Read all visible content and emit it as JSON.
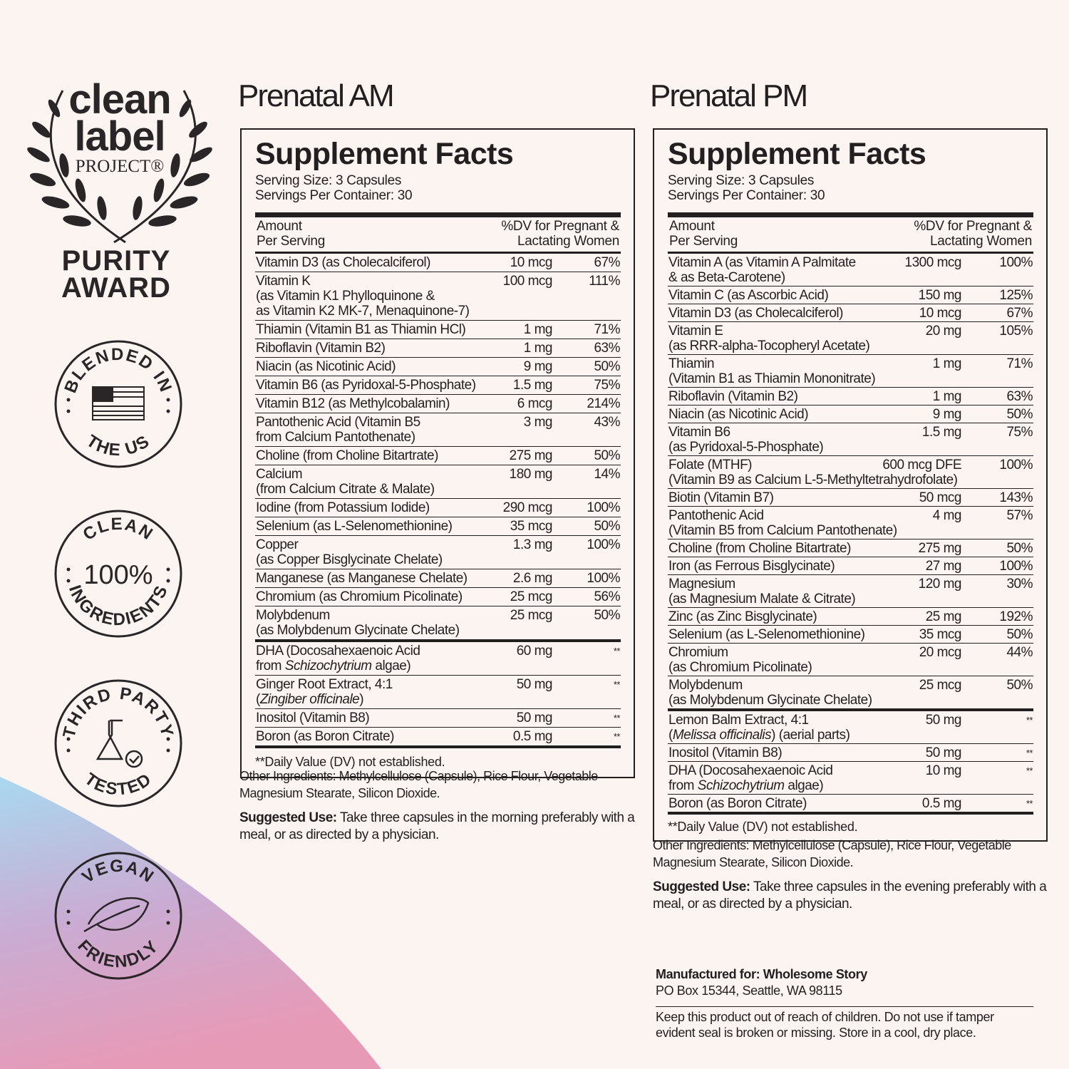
{
  "colors": {
    "text": "#231f20",
    "background": "#fbf4f1",
    "gradient_top": "#a9d8ef",
    "gradient_bottom": "#e69ab6"
  },
  "logo": {
    "line1": "clean",
    "line2": "label",
    "line3": "PROJECT®",
    "award1": "PURITY",
    "award2": "AWARD"
  },
  "badges": [
    {
      "top": "BLENDED IN",
      "bottom": "THE US",
      "icon": "us-flag-icon"
    },
    {
      "top": "CLEAN",
      "center": "100%",
      "bottom": "INGREDIENTS",
      "icon": ""
    },
    {
      "top": "THIRD PARTY",
      "bottom": "TESTED",
      "icon": "flask-check-icon"
    },
    {
      "top": "VEGAN",
      "bottom": "FRIENDLY",
      "icon": "leaf-icon"
    }
  ],
  "am": {
    "title": "Prenatal AM",
    "facts_title": "Supplement Facts",
    "serving_size": "Serving Size: 3 Capsules",
    "servings_per": "Servings Per Container: 30",
    "hdr_l1": "Amount",
    "hdr_l2": "Per Serving",
    "hdr_r1": "%DV for Pregnant &",
    "hdr_r2": "Lactating Women",
    "rows": [
      {
        "lines": [
          "Vitamin D3 (as Cholecalciferol)"
        ],
        "amount": "10 mcg",
        "dv": "67%"
      },
      {
        "lines": [
          "Vitamin K",
          "(as Vitamin K1 Phylloquinone &",
          "as Vitamin K2 MK-7, Menaquinone-7)"
        ],
        "amount": "100 mcg",
        "dv": "111%"
      },
      {
        "lines": [
          "Thiamin (Vitamin B1 as Thiamin HCl)"
        ],
        "amount": "1 mg",
        "dv": "71%"
      },
      {
        "lines": [
          "Riboflavin (Vitamin B2)"
        ],
        "amount": "1 mg",
        "dv": "63%"
      },
      {
        "lines": [
          "Niacin (as Nicotinic Acid)"
        ],
        "amount": "9 mg",
        "dv": "50%"
      },
      {
        "lines": [
          "Vitamin B6 (as Pyridoxal-5-Phosphate)"
        ],
        "amount": "1.5 mg",
        "dv": "75%"
      },
      {
        "lines": [
          "Vitamin B12 (as Methylcobalamin)"
        ],
        "amount": "6 mcg",
        "dv": "214%"
      },
      {
        "lines": [
          "Pantothenic Acid (Vitamin B5",
          "from Calcium Pantothenate)"
        ],
        "amount": "3 mg",
        "dv": "43%"
      },
      {
        "lines": [
          "Choline (from Choline Bitartrate)"
        ],
        "amount": "275 mg",
        "dv": "50%"
      },
      {
        "lines": [
          "Calcium",
          "(from Calcium Citrate & Malate)"
        ],
        "amount": "180 mg",
        "dv": "14%"
      },
      {
        "lines": [
          "Iodine (from Potassium Iodide)"
        ],
        "amount": "290 mcg",
        "dv": "100%"
      },
      {
        "lines": [
          "Selenium (as L-Selenomethionine)"
        ],
        "amount": "35 mcg",
        "dv": "50%"
      },
      {
        "lines": [
          "Copper",
          "(as Copper Bisglycinate Chelate)"
        ],
        "amount": "1.3 mg",
        "dv": "100%"
      },
      {
        "lines": [
          "Manganese (as Manganese Chelate)"
        ],
        "amount": "2.6 mg",
        "dv": "100%"
      },
      {
        "lines": [
          "Chromium (as Chromium Picolinate)"
        ],
        "amount": "25 mcg",
        "dv": "56%"
      },
      {
        "lines": [
          "Molybdenum",
          "(as Molybdenum Glycinate Chelate)"
        ],
        "amount": "25 mcg",
        "dv": "50%",
        "thick": true
      },
      {
        "lines": [
          "DHA (Docosahexaenoic Acid",
          "from Schizochytrium algae)"
        ],
        "italic": "Schizochytrium",
        "amount": "60 mg",
        "dv": "**"
      },
      {
        "lines": [
          "Ginger Root Extract, 4:1",
          "(Zingiber officinale)"
        ],
        "italic": "Zingiber officinale",
        "amount": "50 mg",
        "dv": "**"
      },
      {
        "lines": [
          "Inositol (Vitamin B8)"
        ],
        "amount": "50 mg",
        "dv": "**"
      },
      {
        "lines": [
          "Boron (as Boron Citrate)"
        ],
        "amount": "0.5 mg",
        "dv": "**",
        "thick": true
      }
    ],
    "footnote": "**Daily Value (DV) not established.",
    "other_ingredients": "Other Ingredients: Methylcellulose (Capsule), Rice Flour, Vegetable Magnesium Stearate, Silicon Dioxide.",
    "suggested_label": "Suggested Use:",
    "suggested_text": " Take three capsules in the morning preferably with a meal, or as directed by a physician."
  },
  "pm": {
    "title": "Prenatal PM",
    "facts_title": "Supplement Facts",
    "serving_size": "Serving Size: 3 Capsules",
    "servings_per": "Servings Per Container: 30",
    "hdr_l1": "Amount",
    "hdr_l2": "Per Serving",
    "hdr_r1": "%DV for Pregnant &",
    "hdr_r2": "Lactating Women",
    "rows": [
      {
        "lines": [
          "Vitamin A (as Vitamin A Palmitate",
          "& as Beta-Carotene)"
        ],
        "amount": "1300 mcg",
        "dv": "100%"
      },
      {
        "lines": [
          "Vitamin C (as Ascorbic Acid)"
        ],
        "amount": "150 mg",
        "dv": "125%"
      },
      {
        "lines": [
          "Vitamin D3 (as Cholecalciferol)"
        ],
        "amount": "10 mcg",
        "dv": "67%"
      },
      {
        "lines": [
          "Vitamin E",
          "(as RRR-alpha-Tocopheryl Acetate)"
        ],
        "amount": "20 mg",
        "dv": "105%"
      },
      {
        "lines": [
          "Thiamin",
          "(Vitamin B1 as Thiamin Mononitrate)"
        ],
        "amount": "1 mg",
        "dv": "71%"
      },
      {
        "lines": [
          "Riboflavin (Vitamin B2)"
        ],
        "amount": "1 mg",
        "dv": "63%"
      },
      {
        "lines": [
          "Niacin (as Nicotinic Acid)"
        ],
        "amount": "9 mg",
        "dv": "50%"
      },
      {
        "lines": [
          "Vitamin B6",
          "(as Pyridoxal-5-Phosphate)"
        ],
        "amount": "1.5 mg",
        "dv": "75%"
      },
      {
        "lines": [
          "Folate (MTHF)",
          "(Vitamin B9 as Calcium L-5-Methyltetrahydrofolate)"
        ],
        "amount": "600 mcg DFE",
        "dv": "100%"
      },
      {
        "lines": [
          "Biotin (Vitamin B7)"
        ],
        "amount": "50 mcg",
        "dv": "143%"
      },
      {
        "lines": [
          "Pantothenic Acid",
          "(Vitamin B5 from Calcium Pantothenate)"
        ],
        "amount": "4 mg",
        "dv": "57%"
      },
      {
        "lines": [
          "Choline (from Choline Bitartrate)"
        ],
        "amount": "275 mg",
        "dv": "50%"
      },
      {
        "lines": [
          "Iron (as Ferrous Bisglycinate)"
        ],
        "amount": "27 mg",
        "dv": "100%"
      },
      {
        "lines": [
          "Magnesium",
          "(as Magnesium Malate & Citrate)"
        ],
        "amount": "120 mg",
        "dv": "30%"
      },
      {
        "lines": [
          "Zinc (as Zinc Bisglycinate)"
        ],
        "amount": "25 mg",
        "dv": "192%"
      },
      {
        "lines": [
          "Selenium (as L-Selenomethionine)"
        ],
        "amount": "35 mcg",
        "dv": "50%"
      },
      {
        "lines": [
          "Chromium",
          "(as Chromium Picolinate)"
        ],
        "amount": "20 mcg",
        "dv": "44%"
      },
      {
        "lines": [
          "Molybdenum",
          "(as Molybdenum Glycinate Chelate)"
        ],
        "amount": "25 mcg",
        "dv": "50%",
        "thick": true
      },
      {
        "lines": [
          "Lemon Balm Extract, 4:1",
          "(Melissa officinalis) (aerial parts)"
        ],
        "italic": "Melissa officinalis",
        "amount": "50 mg",
        "dv": "**"
      },
      {
        "lines": [
          "Inositol (Vitamin B8)"
        ],
        "amount": "50 mg",
        "dv": "**"
      },
      {
        "lines": [
          "DHA (Docosahexaenoic Acid",
          "from Schizochytrium algae)"
        ],
        "italic": "Schizochytrium",
        "amount": "10 mg",
        "dv": "**"
      },
      {
        "lines": [
          "Boron (as Boron Citrate)"
        ],
        "amount": "0.5 mg",
        "dv": "**",
        "thick": true
      }
    ],
    "footnote": "**Daily Value (DV) not established.",
    "other_ingredients": "Other Ingredients: Methylcellulose (Capsule), Rice Flour, Vegetable Magnesium Stearate, Silicon Dioxide.",
    "suggested_label": "Suggested Use:",
    "suggested_text": " Take three capsules in the evening preferably with a meal, or as directed by a physician."
  },
  "manufacturer": {
    "label": "Manufactured for: Wholesome Story",
    "address": "PO Box 15344, Seattle, WA 98115"
  },
  "warning": "Keep this product out of reach of children. Do not use if tamper evident seal is broken or missing. Store in a cool, dry place."
}
